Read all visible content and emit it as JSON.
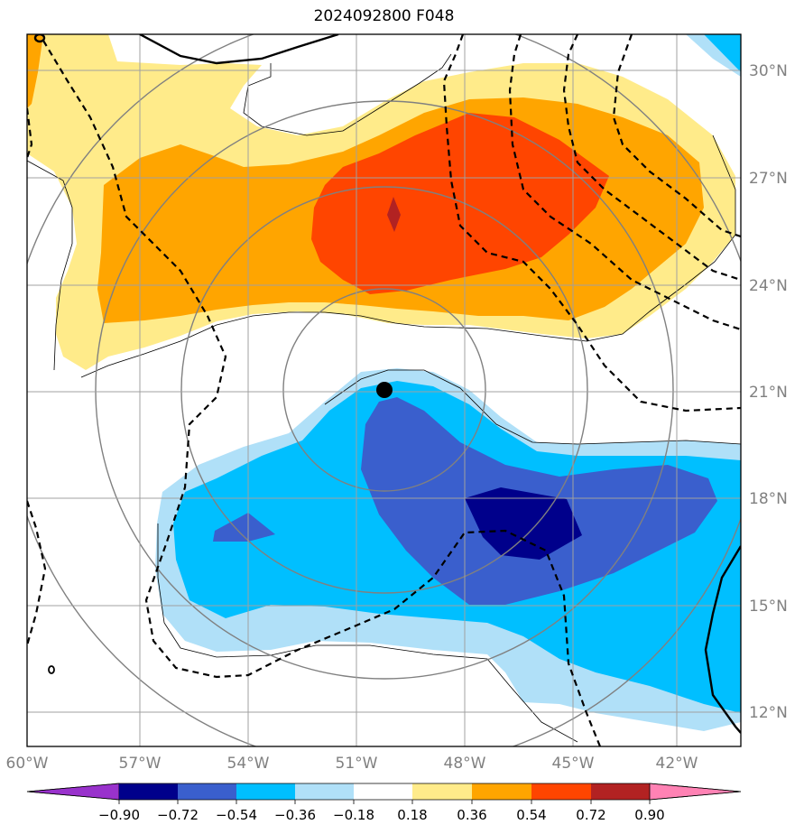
{
  "title": "2024092800 F048",
  "map": {
    "lon_range": [
      -60,
      -40.5
    ],
    "lat_range": [
      11,
      31
    ],
    "lon_ticks": [
      "60°W",
      "57°W",
      "54°W",
      "51°W",
      "48°W",
      "45°W",
      "42°W"
    ],
    "lat_ticks": [
      "30°N",
      "27°N",
      "24°N",
      "21°N",
      "18°N",
      "15°N",
      "12°N"
    ],
    "tick_label_color": "#808080",
    "storm_center": {
      "lon": -49.8,
      "lat": 21.0
    },
    "fill_colors": {
      "neg_0_90": "#00008b",
      "neg_0_72": "#3a5fcd",
      "neg_0_54": "#00bfff",
      "neg_0_36": "#b0e0f8",
      "pos_0_18": "#ffeb8a",
      "pos_0_36": "#ffa500",
      "pos_0_54": "#ff4500",
      "pos_0_72": "#b22222"
    }
  },
  "colorbar": {
    "colors": [
      "#9932cc",
      "#00008b",
      "#3a5fcd",
      "#00bfff",
      "#b0e0f8",
      "#ffffff",
      "#ffeb8a",
      "#ffa500",
      "#ff4500",
      "#b22222",
      "#ff82b4"
    ],
    "labels": [
      "−0.90",
      "−0.72",
      "−0.54",
      "−0.36",
      "−0.18",
      "0.18",
      "0.36",
      "0.54",
      "0.72",
      "0.90"
    ]
  }
}
